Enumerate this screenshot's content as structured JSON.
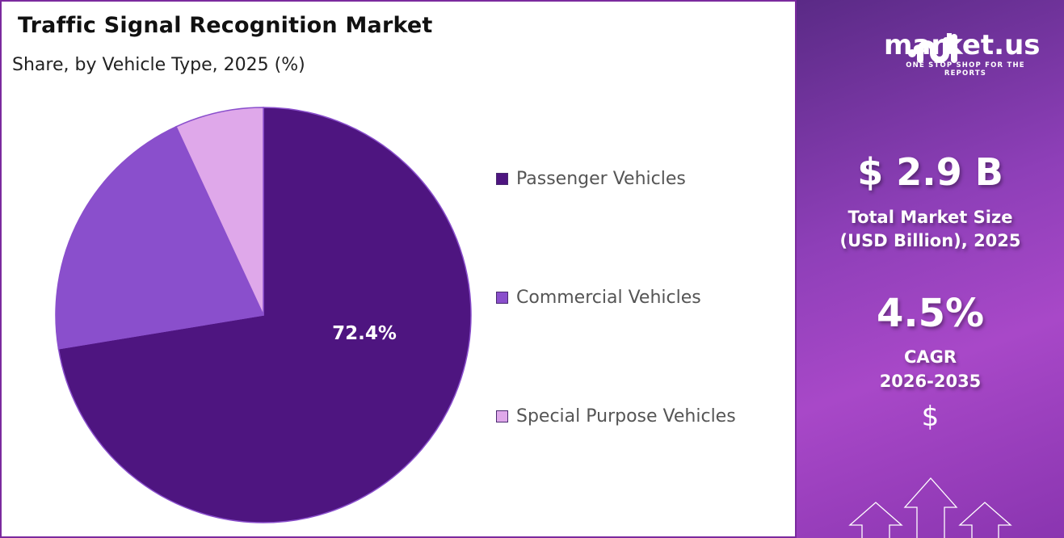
{
  "chart_data": {
    "type": "pie",
    "title": "Traffic Signal Recognition Market",
    "subtitle": "Share, by Vehicle Type, 2025 (%)",
    "categories": [
      "Passenger Vehicles",
      "Commercial Vehicles",
      "Special Purpose Vehicles"
    ],
    "values": [
      72.4,
      20.7,
      6.9
    ],
    "colors": [
      "#4e1580",
      "#8a4fcc",
      "#dfa8ea"
    ],
    "data_labels": [
      "72.4%"
    ],
    "legend_position": "right"
  },
  "sidebar": {
    "brand": "market.us",
    "tagline": "ONE STOP SHOP FOR THE REPORTS",
    "market_size": "$ 2.9 B",
    "market_size_label_1": "Total Market Size",
    "market_size_label_2": "(USD Billion), 2025",
    "cagr": "4.5%",
    "cagr_label": "CAGR",
    "cagr_period": "2026-2035",
    "dollar_symbol": "$"
  }
}
